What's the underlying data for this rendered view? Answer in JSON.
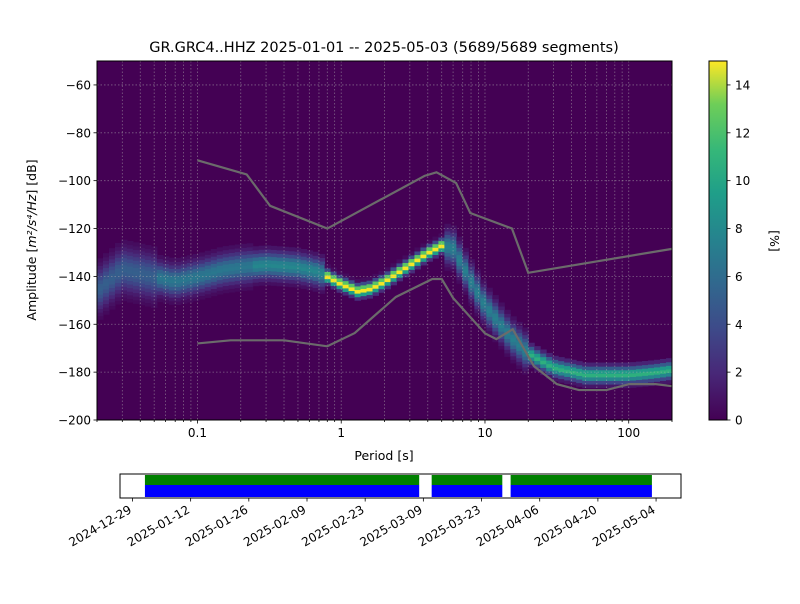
{
  "chart_data": [
    {
      "type": "heatmap",
      "title": "GR.GRC4..HHZ   2025-01-01 -- 2025-05-03  (5689/5689 segments)",
      "xlabel": "Period [s]",
      "ylabel_prefix": "Amplitude [",
      "ylabel_math": "m²/s⁴/Hz",
      "ylabel_suffix": "] [dB]",
      "x_scale": "log",
      "xlim": [
        0.02,
        200
      ],
      "ylim": [
        -200,
        -50
      ],
      "x_ticks": [
        {
          "v": 0.1,
          "label": "0.1"
        },
        {
          "v": 1,
          "label": "1"
        },
        {
          "v": 10,
          "label": "10"
        },
        {
          "v": 100,
          "label": "100"
        }
      ],
      "y_ticks": [
        -60,
        -80,
        -100,
        -120,
        -140,
        -160,
        -180,
        -200
      ],
      "grid": true,
      "colormap": "viridis",
      "background_color": "#440154",
      "noise_model_color": "#6b6b6b",
      "colorbar": {
        "label": "[%]",
        "range": [
          0,
          15
        ],
        "ticks": [
          0,
          2,
          4,
          6,
          8,
          10,
          12,
          14
        ]
      },
      "mode_curve": {
        "x": [
          0.02,
          0.03,
          0.05,
          0.07,
          0.1,
          0.15,
          0.2,
          0.3,
          0.5,
          0.7,
          1.0,
          1.3,
          1.6,
          2.0,
          3.0,
          4.0,
          5.0,
          6.0,
          8.0,
          10,
          15,
          20,
          30,
          50,
          70,
          100,
          150,
          200
        ],
        "y": [
          -146,
          -137,
          -140,
          -142,
          -140,
          -137,
          -136,
          -135,
          -136,
          -138,
          -143,
          -146,
          -145,
          -142,
          -135,
          -130,
          -127,
          -128,
          -142,
          -152,
          -165,
          -172,
          -178,
          -181,
          -181,
          -181,
          -180,
          -179
        ]
      },
      "noise_models": [
        {
          "name": "high",
          "x": [
            0.1,
            0.22,
            0.32,
            0.8,
            3.8,
            4.6,
            6.3,
            7.9,
            15.4,
            20,
            354.8
          ],
          "y": [
            -91.5,
            -97.4,
            -110.5,
            -120,
            -98,
            -96.5,
            -101,
            -113.5,
            -120,
            -138.5,
            -126
          ]
        },
        {
          "name": "low",
          "x": [
            0.1,
            0.17,
            0.4,
            0.8,
            1.24,
            2.4,
            4.3,
            5.0,
            6.0,
            10,
            12,
            15.6,
            21.9,
            31.6,
            45,
            70,
            101,
            154,
            328
          ],
          "y": [
            -168,
            -166.7,
            -166.7,
            -169.2,
            -163.7,
            -148.6,
            -141.1,
            -141.1,
            -149,
            -163.8,
            -166.2,
            -162.1,
            -177.5,
            -185,
            -187.5,
            -187.5,
            -185,
            -185,
            -187.5
          ]
        }
      ]
    },
    {
      "type": "timeline",
      "x_ticks": [
        "2024-12-29",
        "2025-01-12",
        "2025-01-26",
        "2025-02-09",
        "2025-02-23",
        "2025-03-09",
        "2025-03-23",
        "2025-04-06",
        "2025-04-20",
        "2025-05-04"
      ],
      "xlim": [
        "2024-12-26",
        "2025-05-10"
      ],
      "data_color": "#0000ff",
      "used_color": "#008000",
      "data_segments": [
        {
          "start": "2025-01-01",
          "end": "2025-03-08"
        },
        {
          "start": "2025-03-11",
          "end": "2025-03-28"
        },
        {
          "start": "2025-03-30",
          "end": "2025-05-03"
        }
      ]
    }
  ]
}
